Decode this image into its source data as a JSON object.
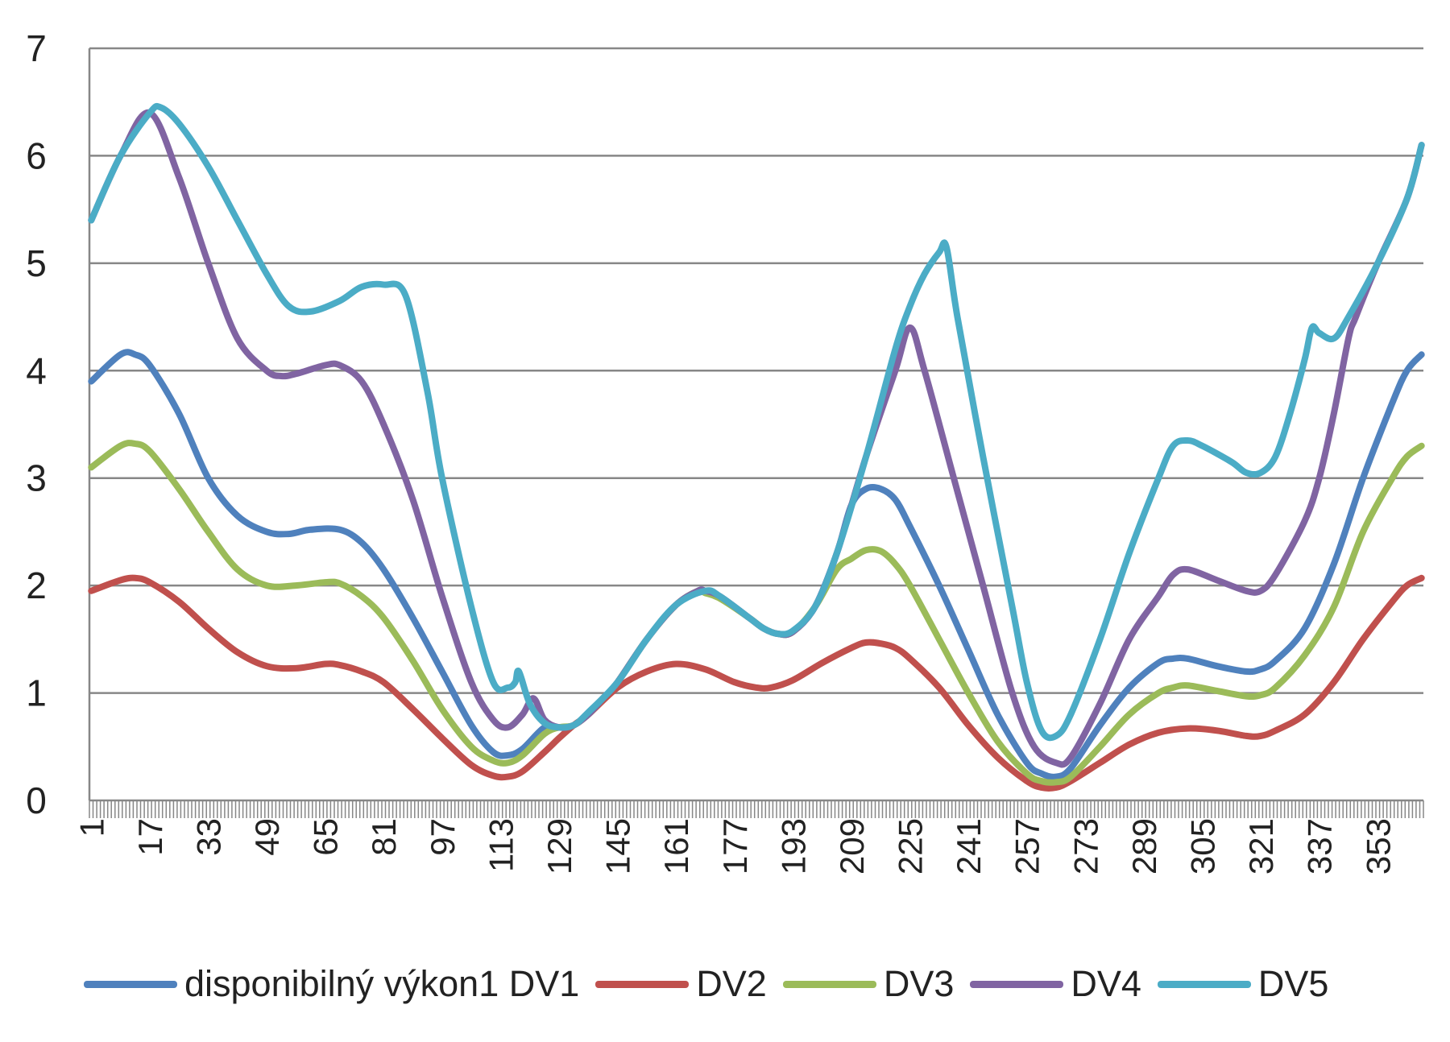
{
  "chart_data": {
    "type": "line",
    "title": "",
    "xlabel": "",
    "ylabel": "",
    "ylim": [
      0,
      7
    ],
    "xlim": [
      1,
      365
    ],
    "yticks": [
      "0",
      "1",
      "2",
      "3",
      "4",
      "5",
      "6",
      "7"
    ],
    "xticks": [
      "1",
      "17",
      "33",
      "49",
      "65",
      "81",
      "97",
      "113",
      "129",
      "145",
      "161",
      "177",
      "193",
      "209",
      "225",
      "241",
      "257",
      "273",
      "289",
      "305",
      "321",
      "337",
      "353"
    ],
    "grid": "horizontal",
    "legend_position": "bottom",
    "series": [
      {
        "name": "disponibilný výkon1 DV1",
        "color": "#4F81BD",
        "points": [
          [
            1,
            3.9
          ],
          [
            9,
            4.15
          ],
          [
            13,
            4.15
          ],
          [
            17,
            4.05
          ],
          [
            25,
            3.6
          ],
          [
            33,
            3.0
          ],
          [
            41,
            2.65
          ],
          [
            49,
            2.5
          ],
          [
            55,
            2.48
          ],
          [
            61,
            2.52
          ],
          [
            69,
            2.52
          ],
          [
            75,
            2.4
          ],
          [
            81,
            2.15
          ],
          [
            89,
            1.7
          ],
          [
            97,
            1.2
          ],
          [
            105,
            0.7
          ],
          [
            111,
            0.45
          ],
          [
            115,
            0.42
          ],
          [
            119,
            0.48
          ],
          [
            125,
            0.68
          ],
          [
            129,
            0.68
          ],
          [
            133,
            0.7
          ],
          [
            137,
            0.8
          ],
          [
            141,
            0.95
          ],
          [
            145,
            1.1
          ],
          [
            153,
            1.5
          ],
          [
            161,
            1.82
          ],
          [
            167,
            1.95
          ],
          [
            169,
            1.95
          ],
          [
            173,
            1.9
          ],
          [
            181,
            1.7
          ],
          [
            185,
            1.6
          ],
          [
            189,
            1.55
          ],
          [
            193,
            1.57
          ],
          [
            199,
            1.8
          ],
          [
            205,
            2.3
          ],
          [
            209,
            2.75
          ],
          [
            213,
            2.9
          ],
          [
            217,
            2.9
          ],
          [
            221,
            2.8
          ],
          [
            225,
            2.55
          ],
          [
            233,
            2.0
          ],
          [
            241,
            1.4
          ],
          [
            249,
            0.8
          ],
          [
            257,
            0.35
          ],
          [
            261,
            0.25
          ],
          [
            265,
            0.22
          ],
          [
            269,
            0.3
          ],
          [
            277,
            0.7
          ],
          [
            285,
            1.05
          ],
          [
            293,
            1.28
          ],
          [
            297,
            1.32
          ],
          [
            301,
            1.32
          ],
          [
            309,
            1.25
          ],
          [
            317,
            1.2
          ],
          [
            321,
            1.22
          ],
          [
            325,
            1.3
          ],
          [
            333,
            1.6
          ],
          [
            341,
            2.2
          ],
          [
            349,
            3.0
          ],
          [
            357,
            3.7
          ],
          [
            361,
            4.0
          ],
          [
            365,
            4.15
          ]
        ]
      },
      {
        "name": "DV2",
        "color": "#C0504D",
        "points": [
          [
            1,
            1.95
          ],
          [
            9,
            2.05
          ],
          [
            13,
            2.07
          ],
          [
            17,
            2.03
          ],
          [
            25,
            1.85
          ],
          [
            33,
            1.6
          ],
          [
            41,
            1.38
          ],
          [
            49,
            1.25
          ],
          [
            57,
            1.23
          ],
          [
            65,
            1.27
          ],
          [
            69,
            1.26
          ],
          [
            75,
            1.2
          ],
          [
            81,
            1.1
          ],
          [
            89,
            0.85
          ],
          [
            97,
            0.58
          ],
          [
            105,
            0.33
          ],
          [
            111,
            0.23
          ],
          [
            115,
            0.22
          ],
          [
            119,
            0.27
          ],
          [
            125,
            0.45
          ],
          [
            129,
            0.58
          ],
          [
            133,
            0.7
          ],
          [
            137,
            0.8
          ],
          [
            145,
            1.05
          ],
          [
            153,
            1.2
          ],
          [
            161,
            1.27
          ],
          [
            169,
            1.22
          ],
          [
            177,
            1.1
          ],
          [
            183,
            1.05
          ],
          [
            187,
            1.05
          ],
          [
            193,
            1.12
          ],
          [
            201,
            1.28
          ],
          [
            209,
            1.42
          ],
          [
            213,
            1.47
          ],
          [
            217,
            1.46
          ],
          [
            221,
            1.42
          ],
          [
            225,
            1.32
          ],
          [
            233,
            1.05
          ],
          [
            241,
            0.7
          ],
          [
            249,
            0.4
          ],
          [
            257,
            0.18
          ],
          [
            261,
            0.12
          ],
          [
            265,
            0.12
          ],
          [
            269,
            0.18
          ],
          [
            277,
            0.35
          ],
          [
            285,
            0.52
          ],
          [
            293,
            0.63
          ],
          [
            301,
            0.67
          ],
          [
            309,
            0.65
          ],
          [
            317,
            0.6
          ],
          [
            321,
            0.6
          ],
          [
            325,
            0.65
          ],
          [
            333,
            0.8
          ],
          [
            341,
            1.1
          ],
          [
            349,
            1.5
          ],
          [
            357,
            1.85
          ],
          [
            361,
            2.0
          ],
          [
            365,
            2.07
          ]
        ]
      },
      {
        "name": "DV3",
        "color": "#9BBB59",
        "points": [
          [
            1,
            3.1
          ],
          [
            9,
            3.3
          ],
          [
            13,
            3.32
          ],
          [
            17,
            3.25
          ],
          [
            25,
            2.9
          ],
          [
            33,
            2.5
          ],
          [
            41,
            2.15
          ],
          [
            49,
            2.0
          ],
          [
            57,
            2.0
          ],
          [
            65,
            2.03
          ],
          [
            69,
            2.02
          ],
          [
            75,
            1.9
          ],
          [
            81,
            1.7
          ],
          [
            89,
            1.3
          ],
          [
            97,
            0.85
          ],
          [
            105,
            0.5
          ],
          [
            111,
            0.37
          ],
          [
            115,
            0.35
          ],
          [
            119,
            0.42
          ],
          [
            125,
            0.62
          ],
          [
            129,
            0.68
          ],
          [
            133,
            0.7
          ],
          [
            137,
            0.8
          ],
          [
            141,
            0.95
          ],
          [
            145,
            1.1
          ],
          [
            153,
            1.5
          ],
          [
            161,
            1.82
          ],
          [
            167,
            1.95
          ],
          [
            169,
            1.93
          ],
          [
            173,
            1.88
          ],
          [
            181,
            1.7
          ],
          [
            185,
            1.6
          ],
          [
            189,
            1.55
          ],
          [
            193,
            1.57
          ],
          [
            199,
            1.8
          ],
          [
            205,
            2.15
          ],
          [
            209,
            2.25
          ],
          [
            213,
            2.33
          ],
          [
            217,
            2.32
          ],
          [
            221,
            2.2
          ],
          [
            225,
            2.0
          ],
          [
            233,
            1.5
          ],
          [
            241,
            1.0
          ],
          [
            249,
            0.55
          ],
          [
            257,
            0.25
          ],
          [
            261,
            0.18
          ],
          [
            265,
            0.17
          ],
          [
            269,
            0.22
          ],
          [
            277,
            0.5
          ],
          [
            285,
            0.8
          ],
          [
            293,
            1.0
          ],
          [
            297,
            1.05
          ],
          [
            301,
            1.07
          ],
          [
            309,
            1.02
          ],
          [
            317,
            0.97
          ],
          [
            321,
            0.98
          ],
          [
            325,
            1.05
          ],
          [
            333,
            1.35
          ],
          [
            341,
            1.8
          ],
          [
            349,
            2.5
          ],
          [
            357,
            3.0
          ],
          [
            361,
            3.2
          ],
          [
            365,
            3.3
          ]
        ]
      },
      {
        "name": "DV4",
        "color": "#8064A2",
        "points": [
          [
            1,
            5.4
          ],
          [
            9,
            6.0
          ],
          [
            17,
            6.4
          ],
          [
            25,
            5.8
          ],
          [
            33,
            5.0
          ],
          [
            41,
            4.3
          ],
          [
            49,
            4.0
          ],
          [
            53,
            3.95
          ],
          [
            57,
            3.97
          ],
          [
            65,
            4.05
          ],
          [
            69,
            4.05
          ],
          [
            75,
            3.9
          ],
          [
            81,
            3.5
          ],
          [
            89,
            2.8
          ],
          [
            97,
            1.9
          ],
          [
            105,
            1.1
          ],
          [
            111,
            0.75
          ],
          [
            115,
            0.68
          ],
          [
            119,
            0.8
          ],
          [
            122,
            0.95
          ],
          [
            125,
            0.75
          ],
          [
            129,
            0.68
          ],
          [
            133,
            0.7
          ],
          [
            137,
            0.8
          ],
          [
            141,
            0.95
          ],
          [
            145,
            1.1
          ],
          [
            153,
            1.5
          ],
          [
            161,
            1.82
          ],
          [
            167,
            1.95
          ],
          [
            169,
            1.95
          ],
          [
            173,
            1.9
          ],
          [
            181,
            1.7
          ],
          [
            185,
            1.6
          ],
          [
            189,
            1.55
          ],
          [
            193,
            1.57
          ],
          [
            199,
            1.8
          ],
          [
            205,
            2.3
          ],
          [
            213,
            3.2
          ],
          [
            221,
            4.0
          ],
          [
            225,
            4.4
          ],
          [
            229,
            4.0
          ],
          [
            237,
            3.0
          ],
          [
            245,
            2.0
          ],
          [
            253,
            1.0
          ],
          [
            259,
            0.5
          ],
          [
            265,
            0.35
          ],
          [
            269,
            0.4
          ],
          [
            277,
            0.9
          ],
          [
            285,
            1.5
          ],
          [
            293,
            1.9
          ],
          [
            297,
            2.1
          ],
          [
            301,
            2.15
          ],
          [
            309,
            2.05
          ],
          [
            317,
            1.95
          ],
          [
            321,
            1.95
          ],
          [
            325,
            2.1
          ],
          [
            333,
            2.6
          ],
          [
            337,
            3.0
          ],
          [
            341,
            3.6
          ],
          [
            345,
            4.3
          ],
          [
            347,
            4.5
          ],
          [
            353,
            5.0
          ],
          [
            361,
            5.6
          ],
          [
            365,
            6.1
          ]
        ]
      },
      {
        "name": "DV5",
        "color": "#4BACC6",
        "points": [
          [
            1,
            5.4
          ],
          [
            9,
            6.0
          ],
          [
            17,
            6.4
          ],
          [
            20,
            6.45
          ],
          [
            25,
            6.3
          ],
          [
            33,
            5.9
          ],
          [
            41,
            5.4
          ],
          [
            49,
            4.9
          ],
          [
            55,
            4.6
          ],
          [
            61,
            4.55
          ],
          [
            69,
            4.65
          ],
          [
            75,
            4.78
          ],
          [
            81,
            4.8
          ],
          [
            87,
            4.7
          ],
          [
            93,
            3.8
          ],
          [
            97,
            3.0
          ],
          [
            105,
            1.8
          ],
          [
            111,
            1.1
          ],
          [
            115,
            1.05
          ],
          [
            117,
            1.1
          ],
          [
            118,
            1.2
          ],
          [
            121,
            0.9
          ],
          [
            125,
            0.72
          ],
          [
            129,
            0.68
          ],
          [
            133,
            0.7
          ],
          [
            137,
            0.82
          ],
          [
            145,
            1.1
          ],
          [
            153,
            1.5
          ],
          [
            161,
            1.82
          ],
          [
            169,
            1.95
          ],
          [
            173,
            1.9
          ],
          [
            181,
            1.7
          ],
          [
            185,
            1.6
          ],
          [
            189,
            1.55
          ],
          [
            193,
            1.58
          ],
          [
            199,
            1.8
          ],
          [
            205,
            2.3
          ],
          [
            213,
            3.2
          ],
          [
            221,
            4.2
          ],
          [
            225,
            4.6
          ],
          [
            229,
            4.9
          ],
          [
            233,
            5.1
          ],
          [
            235,
            5.15
          ],
          [
            238,
            4.5
          ],
          [
            245,
            3.2
          ],
          [
            253,
            1.8
          ],
          [
            257,
            1.1
          ],
          [
            261,
            0.65
          ],
          [
            265,
            0.6
          ],
          [
            269,
            0.8
          ],
          [
            277,
            1.5
          ],
          [
            285,
            2.3
          ],
          [
            293,
            3.0
          ],
          [
            297,
            3.3
          ],
          [
            301,
            3.35
          ],
          [
            305,
            3.3
          ],
          [
            313,
            3.15
          ],
          [
            317,
            3.05
          ],
          [
            321,
            3.05
          ],
          [
            325,
            3.2
          ],
          [
            329,
            3.6
          ],
          [
            333,
            4.1
          ],
          [
            335,
            4.4
          ],
          [
            337,
            4.35
          ],
          [
            341,
            4.3
          ],
          [
            345,
            4.5
          ],
          [
            353,
            5.0
          ],
          [
            361,
            5.6
          ],
          [
            365,
            6.1
          ]
        ]
      }
    ]
  }
}
